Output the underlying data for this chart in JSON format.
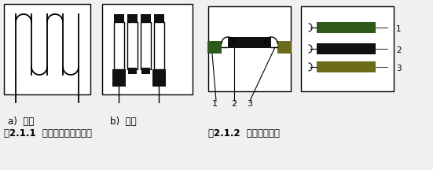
{
  "bg_color": "#f0f0f0",
  "line_color": "#000000",
  "dark_green": "#2d5a1b",
  "dark_olive": "#6b6b1a",
  "black_fill": "#111111",
  "white": "#ffffff",
  "label_a": "a)  丝式",
  "label_b": "b)  箔式",
  "fig_label1": "图2.1.1  金属电阻应变片结构",
  "fig_label2": "图2.1.2  半导体应变片",
  "label_1": "1",
  "label_2": "2",
  "label_3": "3"
}
